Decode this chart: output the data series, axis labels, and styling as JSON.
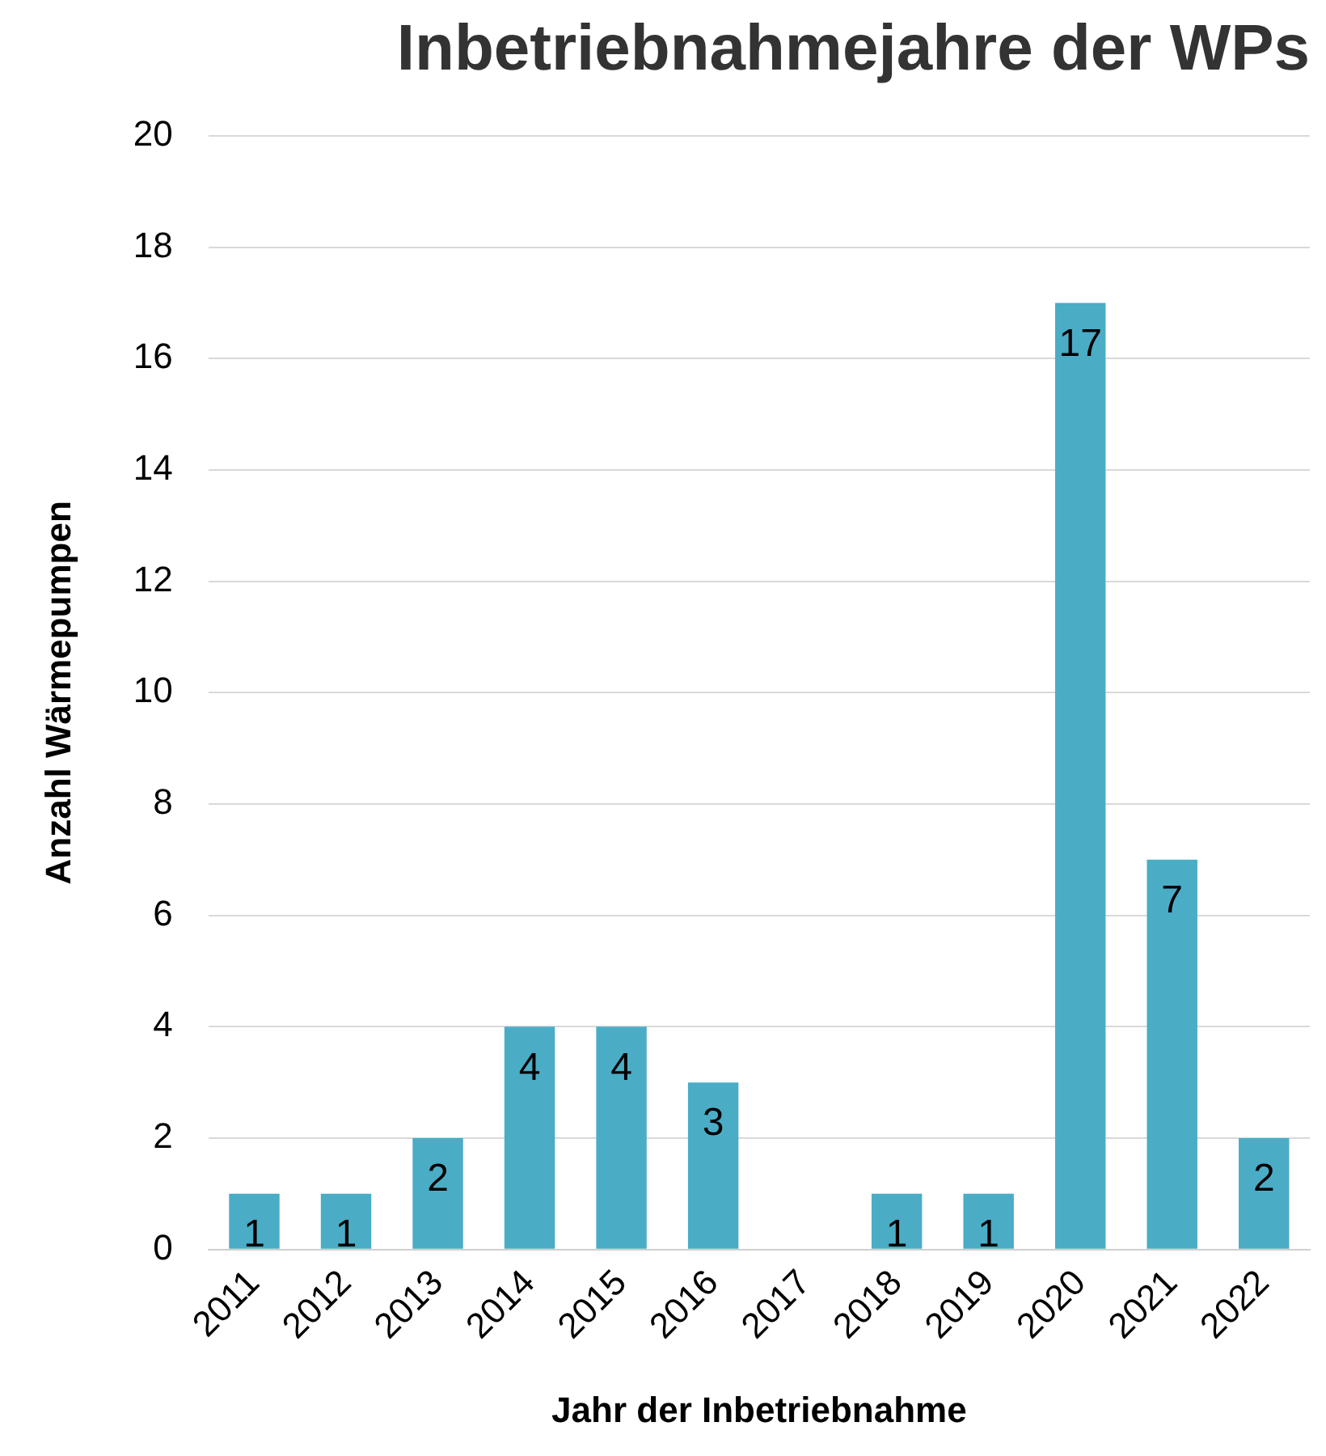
{
  "chart_data": {
    "type": "bar",
    "title": "Inbetriebnahmejahre der WPs",
    "xlabel": "Jahr der Inbetriebnahme",
    "ylabel": "Anzahl Wärmepumpen",
    "categories": [
      "2011",
      "2012",
      "2013",
      "2014",
      "2015",
      "2016",
      "2017",
      "2018",
      "2019",
      "2020",
      "2021",
      "2022"
    ],
    "values": [
      1,
      1,
      2,
      4,
      4,
      3,
      0,
      1,
      1,
      17,
      7,
      2
    ],
    "value_labels": [
      "1",
      "1",
      "2",
      "4",
      "4",
      "3",
      null,
      "1",
      "1",
      "17",
      "7",
      "2"
    ],
    "color": "#4bacc6",
    "ylim": [
      0,
      20
    ],
    "yticks": [
      0,
      2,
      4,
      6,
      8,
      10,
      12,
      14,
      16,
      18,
      20
    ],
    "grid": "y",
    "legend": false
  }
}
